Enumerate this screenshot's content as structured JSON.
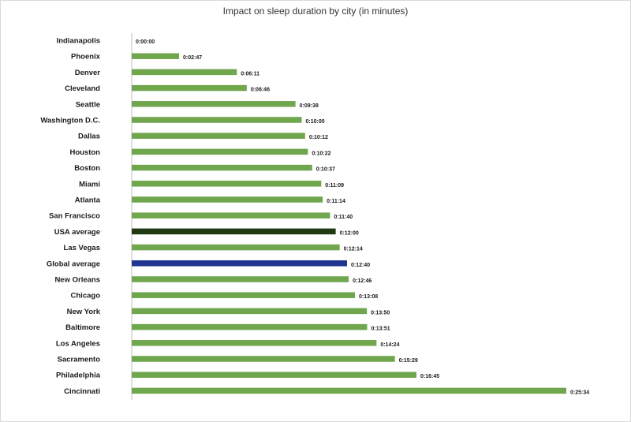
{
  "chart_data": {
    "type": "bar",
    "orientation": "horizontal",
    "title": "Impact on sleep duration by city (in minutes)",
    "xlabel": "",
    "ylabel": "",
    "grid": false,
    "legend": "none",
    "xlim": [
      "0:00:00",
      "0:25:34"
    ],
    "categories": [
      "Indianapolis",
      "Phoenix",
      "Denver",
      "Cleveland",
      "Seattle",
      "Washington D.C.",
      "Dallas",
      "Houston",
      "Boston",
      "Miami",
      "Atlanta",
      "San Francisco",
      "USA average",
      "Las Vegas",
      "Global average",
      "New Orleans",
      "Chicago",
      "New York",
      "Baltimore",
      "Los Angeles",
      "Sacramento",
      "Philadelphia",
      "Cincinnati"
    ],
    "values": [
      "0:00:00",
      "0:02:47",
      "0:06:11",
      "0:06:46",
      "0:09:38",
      "0:10:00",
      "0:10:12",
      "0:10:22",
      "0:10:37",
      "0:11:09",
      "0:11:14",
      "0:11:40",
      "0:12:00",
      "0:12:14",
      "0:12:40",
      "0:12:46",
      "0:13:08",
      "0:13:50",
      "0:13:51",
      "0:14:24",
      "0:15:29",
      "0:16:45",
      "0:25:34"
    ],
    "colors": {
      "default": "#70a64e",
      "USA average": "#1f3a13",
      "Global average": "#1f3590",
      "axis": "#bfbfbf"
    }
  }
}
